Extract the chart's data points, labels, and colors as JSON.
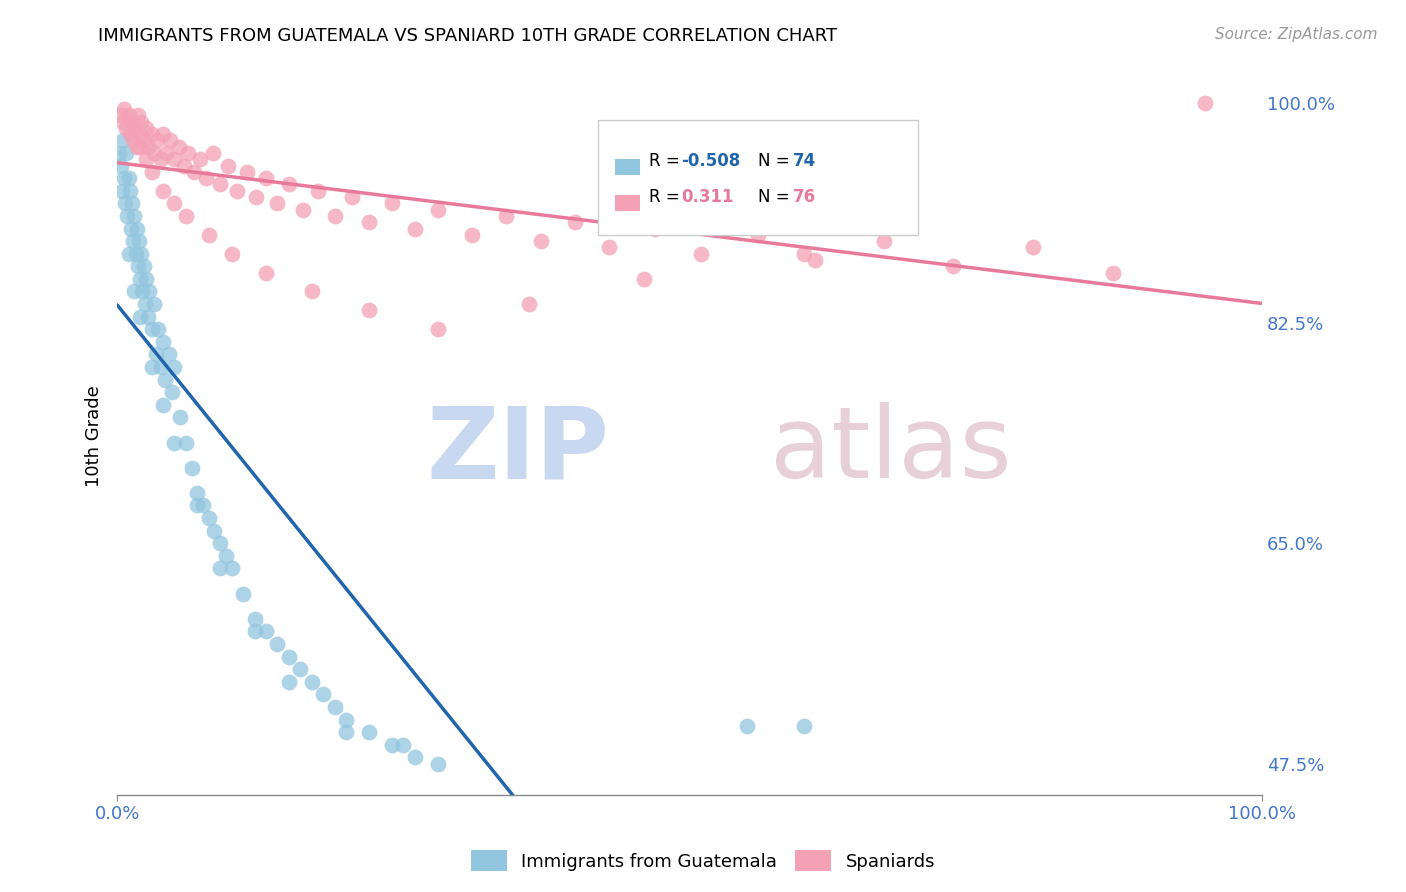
{
  "title": "IMMIGRANTS FROM GUATEMALA VS SPANIARD 10TH GRADE CORRELATION CHART",
  "source": "Source: ZipAtlas.com",
  "ylabel": "10th Grade",
  "legend_blue_label": "Immigrants from Guatemala",
  "legend_pink_label": "Spaniards",
  "R_blue": -0.508,
  "N_blue": 74,
  "R_pink": 0.311,
  "N_pink": 76,
  "blue_color": "#92c5de",
  "pink_color": "#f4a0b5",
  "blue_line_color": "#2166ac",
  "pink_line_color": "#e8799a",
  "blue_scatter_x": [
    0.2,
    0.3,
    0.4,
    0.5,
    0.6,
    0.7,
    0.8,
    0.9,
    1.0,
    1.1,
    1.2,
    1.3,
    1.4,
    1.5,
    1.6,
    1.7,
    1.8,
    1.9,
    2.0,
    2.1,
    2.2,
    2.3,
    2.4,
    2.5,
    2.7,
    2.8,
    3.0,
    3.2,
    3.4,
    3.6,
    3.8,
    4.0,
    4.2,
    4.5,
    4.8,
    5.0,
    5.5,
    6.0,
    6.5,
    7.0,
    7.5,
    8.0,
    8.5,
    9.0,
    9.5,
    10.0,
    11.0,
    12.0,
    13.0,
    14.0,
    15.0,
    16.0,
    17.0,
    18.0,
    19.0,
    20.0,
    22.0,
    24.0,
    26.0,
    28.0,
    1.0,
    1.5,
    2.0,
    3.0,
    4.0,
    5.0,
    7.0,
    9.0,
    12.0,
    15.0,
    20.0,
    25.0,
    55.0,
    60.0
  ],
  "blue_scatter_y": [
    96.0,
    95.0,
    93.0,
    97.0,
    94.0,
    92.0,
    96.0,
    91.0,
    94.0,
    93.0,
    90.0,
    92.0,
    89.0,
    91.0,
    88.0,
    90.0,
    87.0,
    89.0,
    86.0,
    88.0,
    85.0,
    87.0,
    84.0,
    86.0,
    83.0,
    85.0,
    82.0,
    84.0,
    80.0,
    82.0,
    79.0,
    81.0,
    78.0,
    80.0,
    77.0,
    79.0,
    75.0,
    73.0,
    71.0,
    69.0,
    68.0,
    67.0,
    66.0,
    65.0,
    64.0,
    63.0,
    61.0,
    59.0,
    58.0,
    57.0,
    56.0,
    55.0,
    54.0,
    53.0,
    52.0,
    51.0,
    50.0,
    49.0,
    48.0,
    47.5,
    88.0,
    85.0,
    83.0,
    79.0,
    76.0,
    73.0,
    68.0,
    63.0,
    58.0,
    54.0,
    50.0,
    49.0,
    50.5,
    50.5
  ],
  "pink_scatter_x": [
    0.3,
    0.5,
    0.6,
    0.8,
    1.0,
    1.1,
    1.2,
    1.4,
    1.5,
    1.7,
    1.8,
    2.0,
    2.1,
    2.3,
    2.5,
    2.7,
    3.0,
    3.2,
    3.5,
    3.8,
    4.0,
    4.3,
    4.6,
    5.0,
    5.4,
    5.8,
    6.2,
    6.7,
    7.2,
    7.8,
    8.4,
    9.0,
    9.7,
    10.5,
    11.3,
    12.1,
    13.0,
    14.0,
    15.0,
    16.2,
    17.5,
    19.0,
    20.5,
    22.0,
    24.0,
    26.0,
    28.0,
    31.0,
    34.0,
    37.0,
    40.0,
    43.0,
    47.0,
    51.0,
    56.0,
    61.0,
    67.0,
    73.0,
    80.0,
    87.0,
    2.0,
    2.5,
    3.0,
    4.0,
    5.0,
    6.0,
    8.0,
    10.0,
    13.0,
    17.0,
    22.0,
    28.0,
    36.0,
    46.0,
    60.0,
    95.0
  ],
  "pink_scatter_y": [
    99.0,
    98.5,
    99.5,
    98.0,
    99.0,
    97.5,
    98.5,
    97.0,
    98.0,
    96.5,
    99.0,
    97.5,
    98.5,
    97.0,
    98.0,
    96.5,
    97.5,
    96.0,
    97.0,
    95.5,
    97.5,
    96.0,
    97.0,
    95.5,
    96.5,
    95.0,
    96.0,
    94.5,
    95.5,
    94.0,
    96.0,
    93.5,
    95.0,
    93.0,
    94.5,
    92.5,
    94.0,
    92.0,
    93.5,
    91.5,
    93.0,
    91.0,
    92.5,
    90.5,
    92.0,
    90.0,
    91.5,
    89.5,
    91.0,
    89.0,
    90.5,
    88.5,
    90.0,
    88.0,
    89.5,
    87.5,
    89.0,
    87.0,
    88.5,
    86.5,
    96.5,
    95.5,
    94.5,
    93.0,
    92.0,
    91.0,
    89.5,
    88.0,
    86.5,
    85.0,
    83.5,
    82.0,
    84.0,
    86.0,
    88.0,
    100.0
  ],
  "xlim": [
    0,
    100
  ],
  "ylim": [
    45,
    102
  ],
  "yticks": [
    47.5,
    65.0,
    82.5,
    100.0
  ],
  "xtick_positions": [
    0,
    100
  ],
  "xtick_labels": [
    "0.0%",
    "100.0%"
  ],
  "ytick_color": "#4477cc",
  "xtick_color": "#4477cc",
  "grid_color": "#cccccc",
  "watermark_zip_color": "#c8d8f0",
  "watermark_atlas_color": "#e8d0d8"
}
